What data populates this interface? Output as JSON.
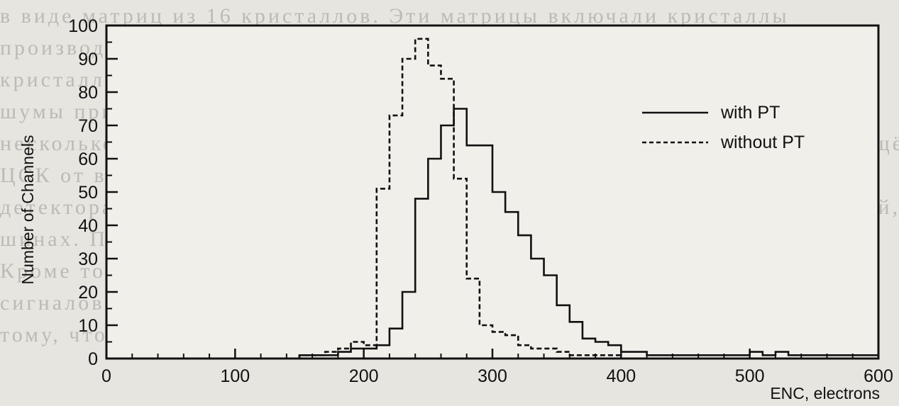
{
  "background_text": [
    "в виде матриц из 16 кристаллов. Эти матрицы включали кристаллы",
    "производства двух типов. Испытания показали, что хотя параметры",
    "кристаллов обоих типов в лабораторных условиях были одинаковы,",
    "шумы при работе в реальных условиях работы в детекторе различались в",
    "несколько раз. Выяснилось, что для обеспечения достаточной помехозащищённости",
    "ЦСК от внешних наводок необходимо развязать \"земли\" торцевого листа",
    "детектора, находящейся в детекторе, и \"земли\" усилителей-формирователей,",
    "шинах. Поэтому решено было сделать вход УФ дифференциальным.",
    "Кроме того, необходимо обеспечить подавление взаимных наводок",
    "сигналов сигнала из одного канала в соседние должно быть не только",
    "тому, чтобы на исследовании работы триггера для испытаний она сделана"
  ],
  "chart_data": {
    "type": "step",
    "xlabel": "ENC, electrons",
    "ylabel": "Number of Channels",
    "xlim": [
      0,
      600
    ],
    "ylim": [
      0,
      100
    ],
    "x_ticks": [
      0,
      100,
      200,
      300,
      400,
      500,
      600
    ],
    "y_ticks": [
      0,
      10,
      20,
      30,
      40,
      50,
      60,
      70,
      80,
      90,
      100
    ],
    "bin_width": 10,
    "legend_position": "right",
    "series": [
      {
        "name": "with PT",
        "line_style": "solid",
        "bins": [
          [
            150,
            1
          ],
          [
            160,
            1
          ],
          [
            170,
            1
          ],
          [
            180,
            2
          ],
          [
            190,
            3
          ],
          [
            200,
            3
          ],
          [
            210,
            4
          ],
          [
            220,
            9
          ],
          [
            230,
            20
          ],
          [
            240,
            48
          ],
          [
            250,
            60
          ],
          [
            260,
            70
          ],
          [
            270,
            75
          ],
          [
            280,
            64
          ],
          [
            290,
            64
          ],
          [
            300,
            50
          ],
          [
            310,
            44
          ],
          [
            320,
            37
          ],
          [
            330,
            30
          ],
          [
            340,
            25
          ],
          [
            350,
            16
          ],
          [
            360,
            11
          ],
          [
            370,
            6
          ],
          [
            380,
            5
          ],
          [
            390,
            4
          ],
          [
            400,
            2
          ],
          [
            410,
            2
          ],
          [
            420,
            1
          ],
          [
            430,
            1
          ],
          [
            440,
            1
          ],
          [
            450,
            1
          ],
          [
            460,
            1
          ],
          [
            470,
            1
          ],
          [
            480,
            1
          ],
          [
            490,
            1
          ],
          [
            500,
            2
          ],
          [
            510,
            1
          ],
          [
            520,
            2
          ],
          [
            530,
            1
          ],
          [
            540,
            1
          ],
          [
            550,
            1
          ],
          [
            560,
            1
          ],
          [
            570,
            1
          ],
          [
            580,
            1
          ],
          [
            590,
            1
          ]
        ]
      },
      {
        "name": "without PT",
        "line_style": "dashed",
        "bins": [
          [
            150,
            1
          ],
          [
            160,
            1
          ],
          [
            170,
            2
          ],
          [
            180,
            3
          ],
          [
            190,
            5
          ],
          [
            200,
            4
          ],
          [
            210,
            51
          ],
          [
            220,
            73
          ],
          [
            230,
            90
          ],
          [
            240,
            96
          ],
          [
            250,
            88
          ],
          [
            260,
            84
          ],
          [
            270,
            54
          ],
          [
            280,
            24
          ],
          [
            290,
            10
          ],
          [
            300,
            8
          ],
          [
            310,
            7
          ],
          [
            320,
            4
          ],
          [
            330,
            3
          ],
          [
            340,
            3
          ],
          [
            350,
            2
          ],
          [
            360,
            1
          ],
          [
            370,
            1
          ],
          [
            380,
            1
          ],
          [
            390,
            1
          ]
        ]
      }
    ]
  }
}
